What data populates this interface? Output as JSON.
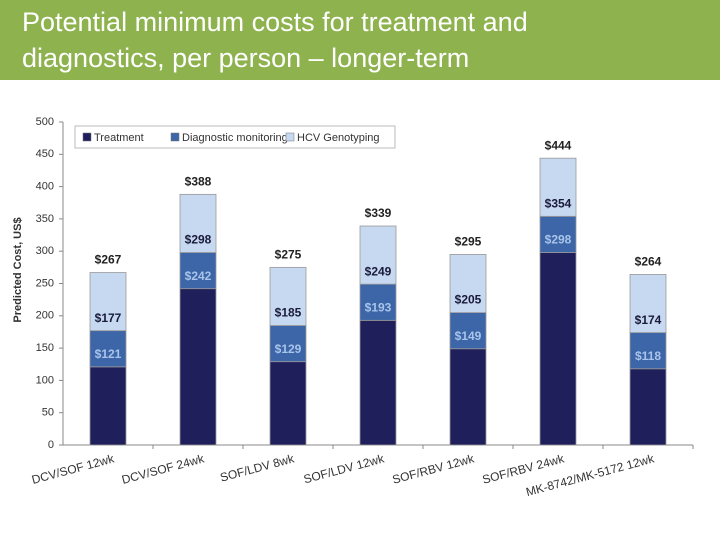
{
  "slide": {
    "title_lines": [
      "Potential minimum costs for treatment and",
      "diagnostics, per person – longer-term"
    ]
  },
  "chart_data": {
    "type": "stacked_bar",
    "y_label": "Predicted Cost, US$",
    "categories": [
      "DCV/SOF 12wk",
      "DCV/SOF 24wk",
      "SOF/LDV 8wk",
      "SOF/LDV 12wk",
      "SOF/RBV 12wk",
      "SOF/RBV 24wk",
      "MK-8742/MK-5172 12wk"
    ],
    "ylim": [
      0,
      500
    ],
    "yticks": [
      0,
      50,
      100,
      150,
      200,
      250,
      300,
      350,
      400,
      450,
      500
    ],
    "grid": false,
    "legend": "top-left",
    "series": [
      {
        "name": "Treatment",
        "color": "#1f1f5c",
        "label_color": "#a9c4ea",
        "values": [
          121,
          242,
          129,
          193,
          149,
          298,
          118
        ],
        "total_labels": [
          {
            "value": 121,
            "label": "$121"
          },
          {
            "value": 242,
            "label": "$242"
          },
          {
            "value": 129,
            "label": "$129"
          },
          {
            "value": 193,
            "label": "$193"
          },
          {
            "value": 149,
            "label": "$149"
          },
          {
            "value": 298,
            "label": "$298"
          },
          {
            "value": 118,
            "label": "$118"
          }
        ]
      },
      {
        "name": "Diagnostic monitoring",
        "color": "#3d66a8",
        "label_color": "#1a1a3a",
        "values": [
          56,
          56,
          56,
          56,
          56,
          56,
          56
        ],
        "total_labels": [
          {
            "value": 177,
            "label": "$177"
          },
          {
            "value": 298,
            "label": "$298"
          },
          {
            "value": 185,
            "label": "$185"
          },
          {
            "value": 249,
            "label": "$249"
          },
          {
            "value": 205,
            "label": "$205"
          },
          {
            "value": 354,
            "label": "$354"
          },
          {
            "value": 174,
            "label": "$174"
          }
        ]
      },
      {
        "name": "HCV Genotyping",
        "color": "#c6d9f1",
        "label_color": "#222222",
        "values": [
          90,
          90,
          90,
          90,
          90,
          90,
          90
        ],
        "total_labels": [
          {
            "value": 267,
            "label": "$267"
          },
          {
            "value": 388,
            "label": "$388"
          },
          {
            "value": 275,
            "label": "$275"
          },
          {
            "value": 339,
            "label": "$339"
          },
          {
            "value": 295,
            "label": "$295"
          },
          {
            "value": 444,
            "label": "$444"
          },
          {
            "value": 264,
            "label": "$264"
          }
        ]
      }
    ]
  }
}
